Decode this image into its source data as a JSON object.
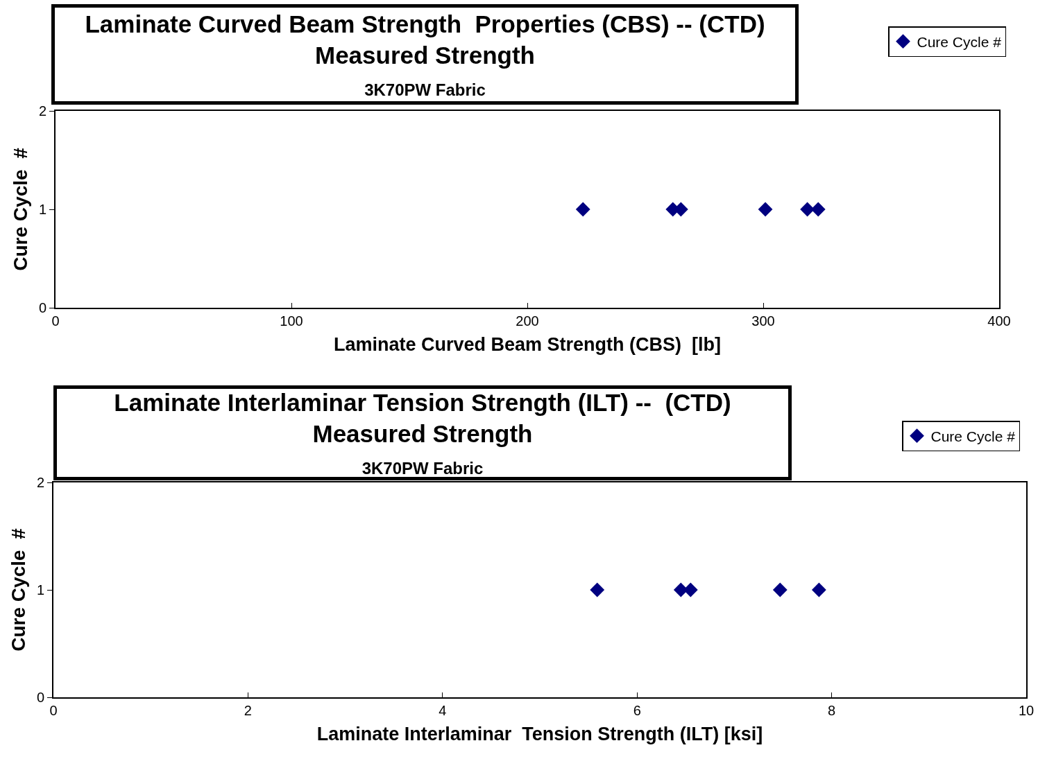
{
  "chart_data": [
    {
      "type": "scatter",
      "title": "Laminate Curved Beam Strength  Properties (CBS) -- (CTD)\nMeasured Strength",
      "subtitle": "3K70PW Fabric",
      "xlabel": "Laminate Curved Beam Strength (CBS)  [lb]",
      "ylabel": "Cure Cycle  #",
      "series": [
        {
          "name": "Cure Cycle #",
          "color": "#000080",
          "x": [
            223.6,
            261.7,
            265.1,
            300.9,
            318.7,
            323.3
          ],
          "values": [
            1,
            1,
            1,
            1,
            1,
            1
          ]
        }
      ],
      "xlim": [
        0,
        400
      ],
      "xticks": [
        0,
        100,
        200,
        300,
        400
      ],
      "ylim": [
        0,
        2
      ],
      "yticks": [
        0,
        1,
        2
      ],
      "grid": false,
      "legend": "top right",
      "marker": "diamond"
    },
    {
      "type": "scatter",
      "title": "Laminate Interlaminar Tension Strength (ILT) --  (CTD)\nMeasured Strength",
      "subtitle": "3K70PW Fabric",
      "xlabel": "Laminate Interlaminar  Tension Strength (ILT) [ksi]",
      "ylabel": "Cure Cycle  #",
      "series": [
        {
          "name": "Cure Cycle #",
          "color": "#000080",
          "x": [
            5.59,
            6.45,
            6.55,
            7.47,
            7.87
          ],
          "values": [
            1,
            1,
            1,
            1,
            1
          ]
        }
      ],
      "xlim": [
        0,
        10
      ],
      "xticks": [
        0,
        2,
        4,
        6,
        8,
        10
      ],
      "ylim": [
        0,
        2
      ],
      "yticks": [
        0,
        1,
        2
      ],
      "grid": false,
      "legend": "top right",
      "marker": "diamond"
    }
  ]
}
